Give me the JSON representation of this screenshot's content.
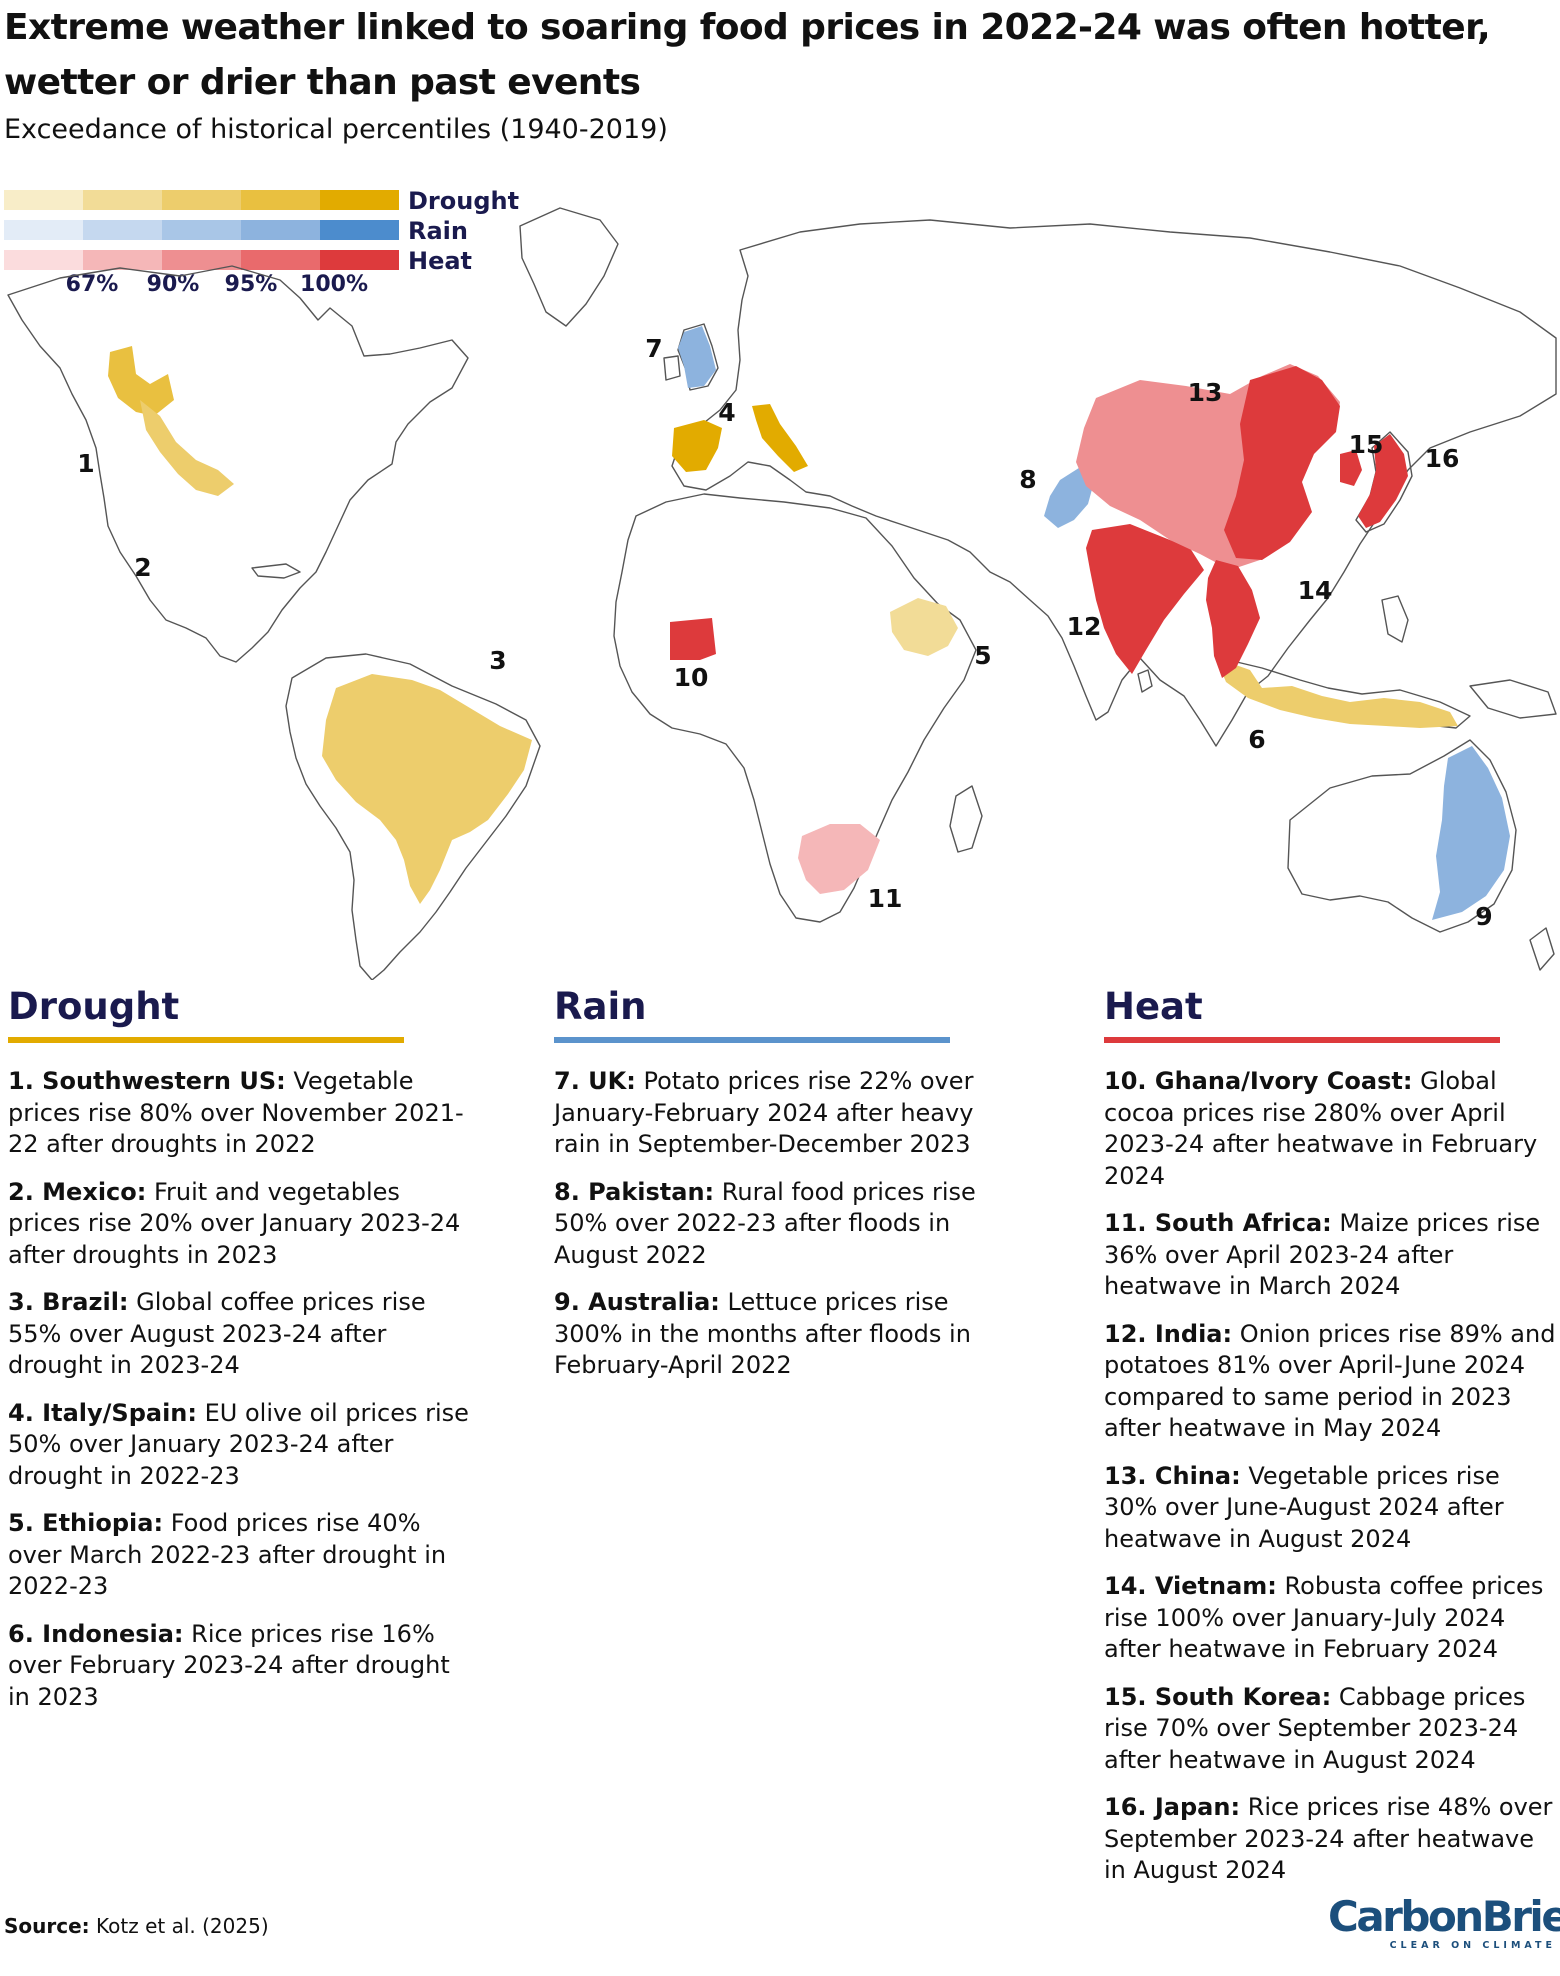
{
  "title": "Extreme weather linked to soaring food prices in 2022-24 was often hotter, wetter or drier than past events",
  "subtitle": "Exceedance of historical percentiles (1940-2019)",
  "legend": {
    "scales": [
      {
        "label": "Drought",
        "colors": [
          "#f8edc8",
          "#f2dc97",
          "#edcd6c",
          "#e9c040",
          "#e2ab00"
        ]
      },
      {
        "label": "Rain",
        "colors": [
          "#e3ecf7",
          "#c5d8ef",
          "#a9c6e7",
          "#8db3de",
          "#4c8ccd"
        ]
      },
      {
        "label": "Heat",
        "colors": [
          "#fbdcdd",
          "#f5b7b8",
          "#ee8f91",
          "#e96a6c",
          "#dd3a3c"
        ]
      }
    ],
    "thresholds": [
      "67%",
      "90%",
      "95%",
      "100%"
    ]
  },
  "map_labels": [
    "1",
    "2",
    "3",
    "4",
    "5",
    "6",
    "7",
    "8",
    "9",
    "10",
    "11",
    "12",
    "13",
    "14",
    "15",
    "16"
  ],
  "columns": {
    "drought": {
      "heading": "Drought",
      "color": "#e2ab00",
      "items": [
        {
          "lead": "1. Southwestern US:",
          "text": "Vegetable prices rise 80% over November 2021-22 after droughts in 2022"
        },
        {
          "lead": "2. Mexico:",
          "text": "Fruit and vegetables prices rise 20% over January 2023-24 after droughts in 2023"
        },
        {
          "lead": "3. Brazil:",
          "text": "Global coffee prices rise 55% over August 2023-24 after drought in 2023-24"
        },
        {
          "lead": "4. Italy/Spain:",
          "text": "EU olive oil prices rise 50% over January 2023-24 after drought in 2022-23"
        },
        {
          "lead": "5. Ethiopia:",
          "text": "Food prices rise 40% over March 2022-23 after drought in 2022-23"
        },
        {
          "lead": "6. Indonesia:",
          "text": "Rice prices rise 16% over February 2023-24 after drought in 2023"
        }
      ]
    },
    "rain": {
      "heading": "Rain",
      "color": "#5b93cc",
      "items": [
        {
          "lead": "7. UK:",
          "text": "Potato prices rise 22% over January-February 2024 after heavy rain in September-December 2023"
        },
        {
          "lead": "8. Pakistan:",
          "text": "Rural food prices rise 50% over 2022-23 after floods in August 2022"
        },
        {
          "lead": "9. Australia:",
          "text": "Lettuce prices rise 300% in the months after floods in February-April 2022"
        }
      ]
    },
    "heat": {
      "heading": "Heat",
      "color": "#dd3a3c",
      "items": [
        {
          "lead": "10. Ghana/Ivory Coast:",
          "text": "Global cocoa prices rise 280% over April 2023-24 after heatwave in February 2024"
        },
        {
          "lead": "11. South Africa:",
          "text": "Maize prices rise 36% over April 2023-24 after heatwave in March 2024"
        },
        {
          "lead": "12. India:",
          "text": "Onion prices rise 89% and potatoes 81% over April-June 2024 compared to same period in 2023 after heatwave in May 2024"
        },
        {
          "lead": "13. China:",
          "text": "Vegetable prices rise 30% over June-August 2024 after heatwave in August 2024"
        },
        {
          "lead": "14. Vietnam:",
          "text": "Robusta coffee prices rise 100% over January-July 2024 after heatwave in February 2024"
        },
        {
          "lead": "15. South Korea:",
          "text": "Cabbage prices rise 70% over September 2023-24 after heatwave in August 2024"
        },
        {
          "lead": "16. Japan:",
          "text": "Rice prices rise 48% over September 2023-24 after heatwave in August 2024"
        }
      ]
    }
  },
  "source": {
    "lead": "Source:",
    "text": "Kotz et al. (2025)"
  },
  "logo": {
    "name": "CarbonBrief",
    "tagline": "CLEAR ON CLIMATE"
  }
}
